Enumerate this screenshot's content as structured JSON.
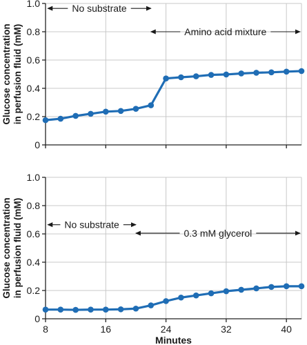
{
  "chart_data": [
    {
      "type": "line",
      "panel": "top",
      "ylabel_lines": [
        "Glucose concentration",
        "in perfusion fluid (mM)"
      ],
      "xlabel": "",
      "ylim": [
        0,
        1.0
      ],
      "xlim": [
        8,
        42
      ],
      "yticks": [
        0,
        0.2,
        0.4,
        0.6,
        0.8,
        1.0
      ],
      "ytick_labels": [
        "0",
        "0.2",
        "0.4",
        "0.6",
        "0.8",
        "1.0"
      ],
      "xticks": [
        8,
        16,
        24,
        32,
        40
      ],
      "xtick_labels": [],
      "grid": true,
      "series": [
        {
          "color": "#1f6db5",
          "x": [
            8,
            10,
            12,
            14,
            16,
            18,
            20,
            22,
            24,
            26,
            28,
            30,
            32,
            34,
            36,
            38,
            40,
            42
          ],
          "y": [
            0.175,
            0.185,
            0.205,
            0.22,
            0.235,
            0.24,
            0.255,
            0.28,
            0.47,
            0.478,
            0.485,
            0.495,
            0.498,
            0.505,
            0.51,
            0.513,
            0.518,
            0.522
          ]
        }
      ],
      "annotations": [
        {
          "text": "No substrate",
          "y": 0.965,
          "x_from": 8.3,
          "x_to": 22
        },
        {
          "text": "Amino acid mixture",
          "y": 0.8,
          "x_from": 22,
          "x_to": 41.8
        }
      ]
    },
    {
      "type": "line",
      "panel": "bottom",
      "ylabel_lines": [
        "Glucose concentration",
        "in perfusion fluid (mM)"
      ],
      "xlabel": "Minutes",
      "ylim": [
        0,
        1.0
      ],
      "xlim": [
        8,
        42
      ],
      "yticks": [
        0,
        0.2,
        0.4,
        0.6,
        0.8,
        1.0
      ],
      "ytick_labels": [
        "0",
        "0.2",
        "0.4",
        "0.6",
        "0.8",
        "1.0"
      ],
      "xticks": [
        8,
        16,
        24,
        32,
        40
      ],
      "xtick_labels": [
        "8",
        "16",
        "24",
        "32",
        "40"
      ],
      "grid": true,
      "series": [
        {
          "color": "#1f6db5",
          "x": [
            8,
            10,
            12,
            14,
            16,
            18,
            20,
            22,
            24,
            26,
            28,
            30,
            32,
            34,
            36,
            38,
            40,
            42
          ],
          "y": [
            0.065,
            0.065,
            0.063,
            0.065,
            0.065,
            0.067,
            0.072,
            0.095,
            0.125,
            0.15,
            0.165,
            0.18,
            0.195,
            0.205,
            0.215,
            0.225,
            0.23,
            0.23
          ]
        }
      ],
      "annotations": [
        {
          "text": "No substrate",
          "y": 0.665,
          "x_from": 8.3,
          "x_to": 20
        },
        {
          "text": "0.3 mM glycerol",
          "y": 0.605,
          "x_from": 20,
          "x_to": 41.8
        }
      ]
    }
  ]
}
